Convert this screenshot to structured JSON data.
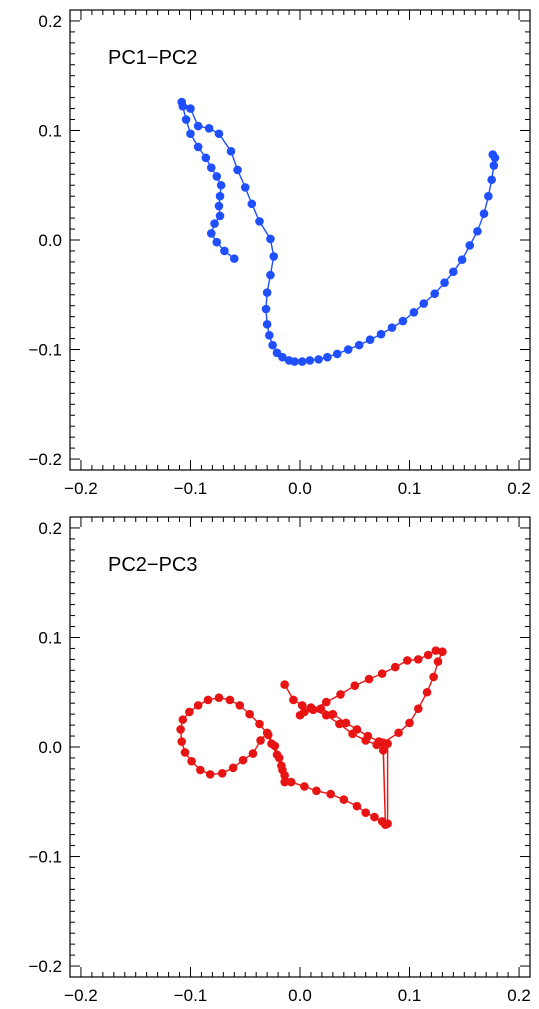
{
  "chart_data": [
    {
      "type": "line",
      "title": "PC1−PC2",
      "xlabel": "",
      "ylabel": "",
      "xlim": [
        -0.21,
        0.21
      ],
      "ylim": [
        -0.21,
        0.21
      ],
      "xticks": [
        -0.2,
        -0.1,
        0.0,
        0.1,
        0.2
      ],
      "xtick_labels": [
        "−0.2",
        "−0.1",
        "0.0",
        "0.1",
        "0.2"
      ],
      "yticks": [
        -0.2,
        -0.1,
        0.0,
        0.1,
        0.2
      ],
      "ytick_labels": [
        "−0.2",
        "−0.1",
        "0.0",
        "0.1",
        "0.2"
      ],
      "grid": false,
      "marker": "circle",
      "color": "#1f4fff",
      "x": [
        -0.06,
        -0.069,
        -0.076,
        -0.081,
        -0.078,
        -0.073,
        -0.074,
        -0.073,
        -0.072,
        -0.076,
        -0.081,
        -0.086,
        -0.093,
        -0.1,
        -0.104,
        -0.107,
        -0.108,
        -0.1,
        -0.093,
        -0.083,
        -0.074,
        -0.063,
        -0.057,
        -0.05,
        -0.044,
        -0.037,
        -0.027,
        -0.024,
        -0.027,
        -0.03,
        -0.031,
        -0.03,
        -0.028,
        -0.025,
        -0.021,
        -0.016,
        -0.01,
        -0.005,
        0.002,
        0.009,
        0.017,
        0.025,
        0.034,
        0.044,
        0.054,
        0.064,
        0.074,
        0.084,
        0.094,
        0.104,
        0.113,
        0.123,
        0.132,
        0.14,
        0.148,
        0.155,
        0.162,
        0.168,
        0.172,
        0.175,
        0.177,
        0.178,
        0.176
      ],
      "y": [
        -0.017,
        -0.01,
        -0.002,
        0.006,
        0.015,
        0.022,
        0.031,
        0.04,
        0.05,
        0.058,
        0.066,
        0.075,
        0.085,
        0.097,
        0.11,
        0.122,
        0.126,
        0.12,
        0.104,
        0.102,
        0.097,
        0.081,
        0.064,
        0.048,
        0.033,
        0.017,
        0.001,
        -0.015,
        -0.032,
        -0.048,
        -0.063,
        -0.077,
        -0.087,
        -0.096,
        -0.103,
        -0.107,
        -0.11,
        -0.111,
        -0.111,
        -0.11,
        -0.109,
        -0.107,
        -0.104,
        -0.1,
        -0.096,
        -0.091,
        -0.086,
        -0.08,
        -0.074,
        -0.066,
        -0.058,
        -0.049,
        -0.039,
        -0.029,
        -0.018,
        -0.005,
        0.008,
        0.024,
        0.04,
        0.055,
        0.068,
        0.075,
        0.078
      ]
    },
    {
      "type": "line",
      "title": "PC2−PC3",
      "xlabel": "",
      "ylabel": "",
      "xlim": [
        -0.21,
        0.21
      ],
      "ylim": [
        -0.21,
        0.21
      ],
      "xticks": [
        -0.2,
        -0.1,
        0.0,
        0.1,
        0.2
      ],
      "xtick_labels": [
        "−0.2",
        "−0.1",
        "0.0",
        "0.1",
        "0.2"
      ],
      "yticks": [
        -0.2,
        -0.1,
        0.0,
        0.1,
        0.2
      ],
      "ytick_labels": [
        "−0.2",
        "−0.1",
        "0.0",
        "0.1",
        "0.2"
      ],
      "grid": false,
      "marker": "circle",
      "color": "#e81414",
      "x": [
        -0.014,
        -0.006,
        0.002,
        0.012,
        0.024,
        0.036,
        0.048,
        0.06,
        0.07,
        0.076,
        0.078,
        0.076,
        0.09,
        0.1,
        0.108,
        0.116,
        0.122,
        0.126,
        0.13,
        0.124,
        0.117,
        0.108,
        0.098,
        0.087,
        0.075,
        0.063,
        0.05,
        0.037,
        0.024,
        0.012,
        0.0,
        0.004,
        0.01,
        0.019,
        0.03,
        0.042,
        0.052,
        0.062,
        0.072,
        0.08,
        0.08,
        0.075,
        0.068,
        0.06,
        0.052,
        0.04,
        0.028,
        0.015,
        0.004,
        -0.008,
        -0.014,
        -0.017,
        -0.021,
        -0.026,
        -0.03,
        -0.036,
        -0.043,
        -0.052,
        -0.061,
        -0.071,
        -0.082,
        -0.091,
        -0.099,
        -0.105,
        -0.108,
        -0.109,
        -0.107,
        -0.101,
        -0.093,
        -0.084,
        -0.074,
        -0.064,
        -0.055,
        -0.046,
        -0.037,
        -0.029,
        -0.023,
        -0.019,
        -0.016,
        -0.014
      ],
      "y": [
        0.057,
        0.043,
        0.038,
        0.034,
        0.029,
        0.021,
        0.012,
        0.006,
        0.002,
        -0.003,
        -0.071,
        0.004,
        0.013,
        0.022,
        0.035,
        0.05,
        0.064,
        0.078,
        0.087,
        0.088,
        0.084,
        0.08,
        0.079,
        0.073,
        0.067,
        0.062,
        0.056,
        0.048,
        0.041,
        0.034,
        0.029,
        0.032,
        0.036,
        0.035,
        0.03,
        0.022,
        0.016,
        0.01,
        0.005,
        0.003,
        -0.07,
        -0.068,
        -0.064,
        -0.06,
        -0.054,
        -0.048,
        -0.043,
        -0.04,
        -0.036,
        -0.032,
        -0.026,
        -0.017,
        -0.007,
        0.003,
        0.013,
        0.006,
        -0.006,
        -0.012,
        -0.019,
        -0.024,
        -0.025,
        -0.021,
        -0.013,
        -0.005,
        0.005,
        0.016,
        0.025,
        0.032,
        0.038,
        0.043,
        0.045,
        0.043,
        0.038,
        0.03,
        0.021,
        0.011,
        0.001,
        -0.01,
        -0.021,
        -0.032
      ]
    }
  ]
}
